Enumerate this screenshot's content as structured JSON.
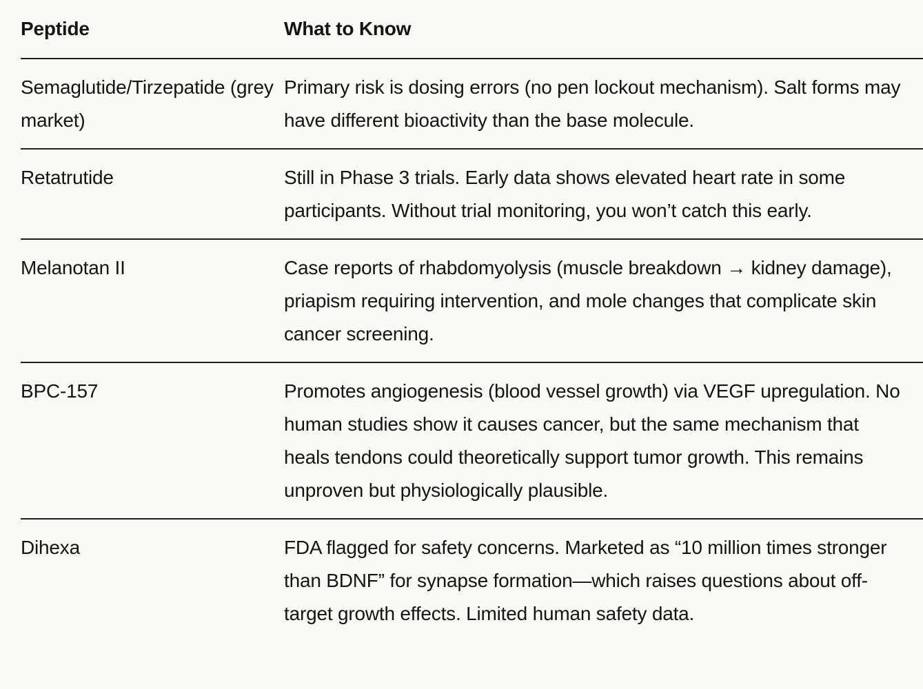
{
  "page": {
    "background_color": "#faf9f6",
    "text_color": "#141414",
    "divider_color": "#1f1f1f"
  },
  "table": {
    "header": {
      "peptide_label": "Peptide",
      "info_label": "What to Know"
    },
    "rows": [
      {
        "peptide": "Semaglutide/Tirzepatide (grey market)",
        "info": "Primary risk is dosing errors (no pen lockout mechanism). Salt forms may have different bioactivity than the base molecule."
      },
      {
        "peptide": "Retatrutide",
        "info": "Still in Phase 3 trials. Early data shows elevated heart rate in some participants. Without trial monitoring, you won’t catch this early."
      },
      {
        "peptide": "Melanotan II",
        "info": "Case reports of rhabdomyolysis (muscle breakdown → kidney damage), priapism requiring intervention, and mole changes that complicate skin cancer screening."
      },
      {
        "peptide": "BPC-157",
        "info": "Promotes angiogenesis (blood vessel growth) via VEGF upregulation. No human studies show it causes cancer, but the same mechanism that heals tendons could theoretically support tumor growth. This remains unproven but physiologically plausible."
      },
      {
        "peptide": "Dihexa",
        "info": "FDA flagged for safety concerns. Marketed as “10 million times stronger than BDNF” for synapse formation—which raises questions about off-target growth effects. Limited human safety data."
      }
    ]
  }
}
